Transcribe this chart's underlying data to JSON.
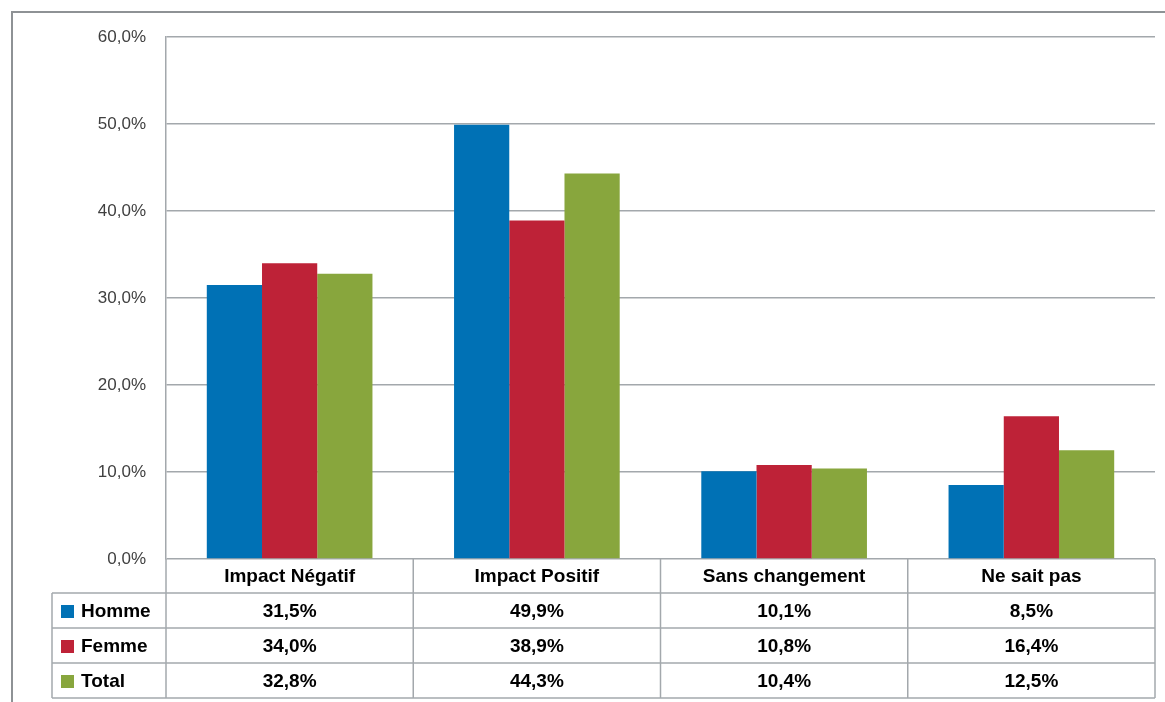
{
  "chart_data": {
    "type": "bar",
    "categories": [
      "Impact Négatif",
      "Impact Positif",
      "Sans changement",
      "Ne sait pas"
    ],
    "series": [
      {
        "name": "Homme",
        "color": "#0071b5",
        "values": [
          31.5,
          49.9,
          10.1,
          8.5
        ],
        "value_labels": [
          "31,5%",
          "49,9%",
          "10,1%",
          "8,5%"
        ]
      },
      {
        "name": "Femme",
        "color": "#be2237",
        "values": [
          34.0,
          38.9,
          10.8,
          16.4
        ],
        "value_labels": [
          "34,0%",
          "38,9%",
          "10,8%",
          "16,4%"
        ]
      },
      {
        "name": "Total",
        "color": "#88a63d",
        "values": [
          32.8,
          44.3,
          10.4,
          12.5
        ],
        "value_labels": [
          "32,8%",
          "44,3%",
          "10,4%",
          "12,5%"
        ]
      }
    ],
    "ylim": [
      0,
      60
    ],
    "yticks": [
      {
        "value": 0,
        "label": "0,0%"
      },
      {
        "value": 10,
        "label": "10,0%"
      },
      {
        "value": 20,
        "label": "20,0%"
      },
      {
        "value": 30,
        "label": "30,0%"
      },
      {
        "value": 40,
        "label": "40,0%"
      },
      {
        "value": 50,
        "label": "50,0%"
      },
      {
        "value": 60,
        "label": "60,0%"
      }
    ],
    "grid": "y",
    "legend": "bottom left"
  }
}
